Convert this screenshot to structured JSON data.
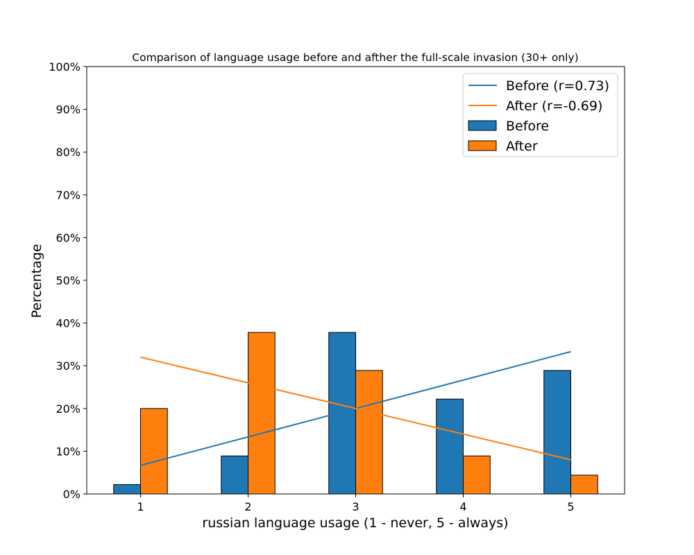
{
  "chart_data": {
    "type": "bar",
    "title": "Comparison of language usage before and afther the full-scale invasion (30+ only)",
    "xlabel": "russian language usage (1 - never, 5 - always)",
    "ylabel": "Percentage",
    "categories": [
      "1",
      "2",
      "3",
      "4",
      "5"
    ],
    "x": [
      1,
      2,
      3,
      4,
      5
    ],
    "ylim": [
      0,
      100
    ],
    "yticks": [
      "0%",
      "10%",
      "20%",
      "30%",
      "40%",
      "50%",
      "60%",
      "70%",
      "80%",
      "90%",
      "100%"
    ],
    "grid": false,
    "legend_position": "top-right",
    "series": [
      {
        "name": "Before",
        "values": [
          2.2,
          8.9,
          37.8,
          22.2,
          28.9
        ],
        "color": "#1f77b4"
      },
      {
        "name": "After",
        "values": [
          20.0,
          37.8,
          28.9,
          8.9,
          4.4
        ],
        "color": "#ff7f0e"
      }
    ],
    "trend_lines": [
      {
        "name": "Before (r=0.73)",
        "x": [
          1,
          5
        ],
        "y": [
          6.7,
          33.3
        ],
        "color": "#1f77b4"
      },
      {
        "name": "After (r=-0.69)",
        "x": [
          1,
          5
        ],
        "y": [
          32.0,
          8.0
        ],
        "color": "#ff7f0e"
      }
    ],
    "bar_edge_color": "#000000"
  }
}
